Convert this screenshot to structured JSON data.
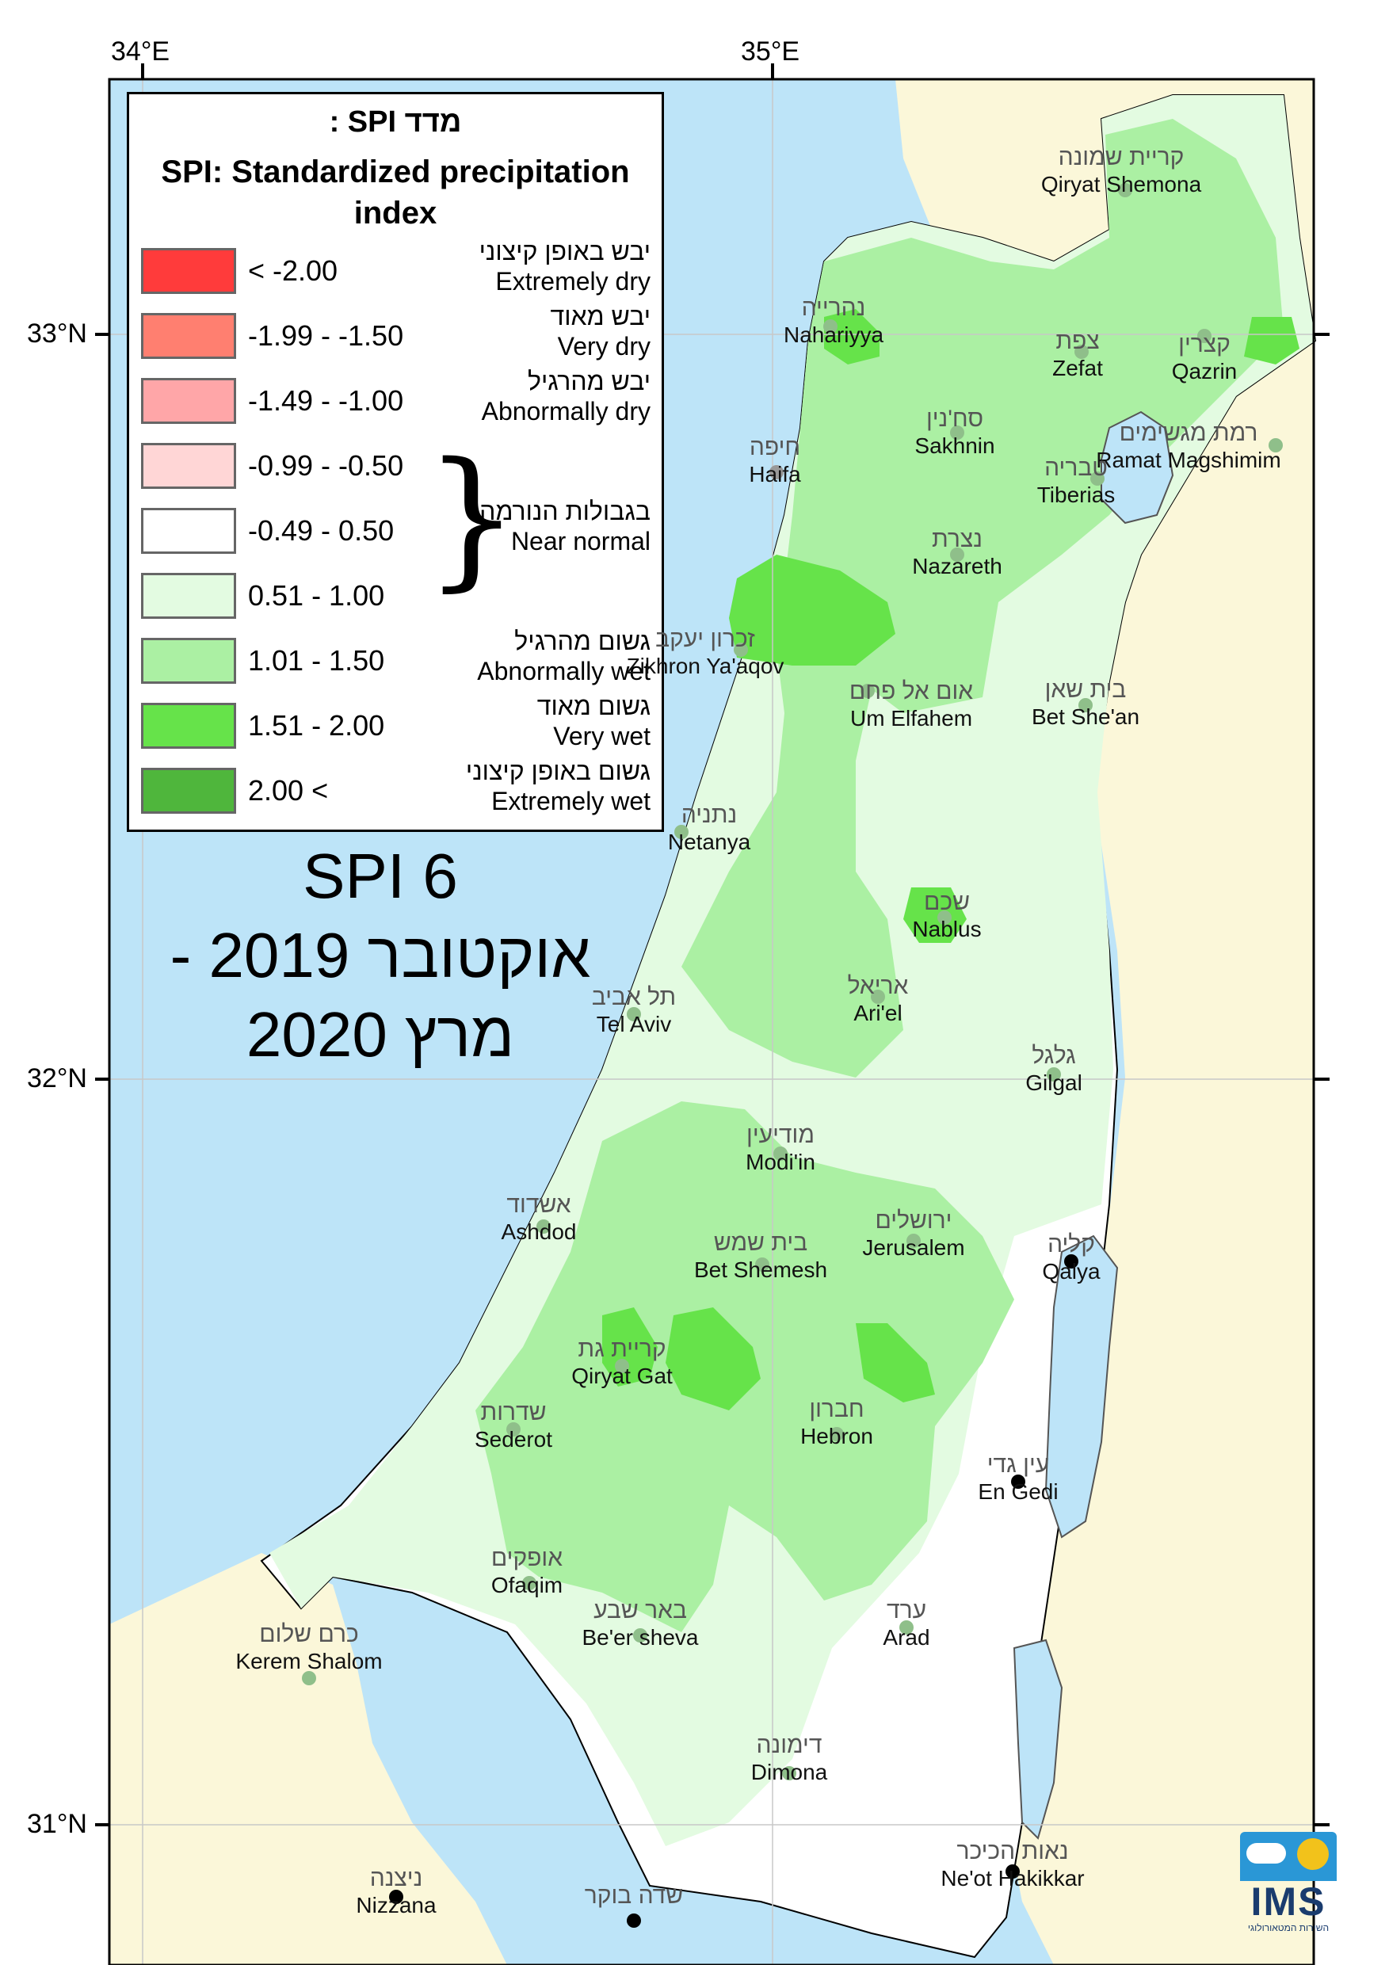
{
  "colors": {
    "sea": "#bde4f8",
    "land": "#fbf7d9",
    "near_normal": "#ffffff",
    "w051_100": "#e3fbe1",
    "w101_150": "#abf0a3",
    "w151_200": "#66e34a",
    "w200": "#4fb63c",
    "d_extreme": "#ff3b3b",
    "d_very": "#ff7f70",
    "d_abn": "#ffa6a8",
    "d_light": "#ffd6d6"
  },
  "axes": {
    "lon_ticks": [
      "34°E",
      "35°E"
    ],
    "lat_ticks": [
      "33°N",
      "32°N",
      "31°N"
    ]
  },
  "legend": {
    "heading_he": "מדד SPI :",
    "heading_en": "SPI: Standardized precipitation index",
    "classes": [
      {
        "range": "< -2.00",
        "color": "#ff3b3b",
        "label_he": "יבש באופן קיצוני",
        "label_en": "Extremely dry"
      },
      {
        "range": "-1.99 - -1.50",
        "color": "#ff7f70",
        "label_he": "יבש מאוד",
        "label_en": "Very dry"
      },
      {
        "range": "-1.49 - -1.00",
        "color": "#ffa6a8",
        "label_he": "יבש מהרגיל",
        "label_en": "Abnormally dry"
      },
      {
        "range": "-0.99 - -0.50",
        "color": "#ffd6d6",
        "label_he": "",
        "label_en": ""
      },
      {
        "range": "-0.49 - 0.50",
        "color": "#ffffff",
        "label_he": "בגבולות הנורמה",
        "label_en": "Near normal"
      },
      {
        "range": "0.51 - 1.00",
        "color": "#e3fbe1",
        "label_he": "",
        "label_en": ""
      },
      {
        "range": "1.01 - 1.50",
        "color": "#abf0a3",
        "label_he": "גשום מהרגיל",
        "label_en": "Abnormally wet"
      },
      {
        "range": "1.51 - 2.00",
        "color": "#66e34a",
        "label_he": "גשום מאוד",
        "label_en": "Very wet"
      },
      {
        "range": "2.00 <",
        "color": "#4fb63c",
        "label_he": "גשום באופן קיצוני",
        "label_en": "Extremely wet"
      }
    ]
  },
  "title": {
    "line1": "SPI 6",
    "line2": "אוקטובר 2019 -",
    "line3": "מרץ  2020"
  },
  "cities": [
    {
      "he": "קריית שמונה",
      "en": "Qiryat Shemona"
    },
    {
      "he": "נהרייה",
      "en": "Nahariyya"
    },
    {
      "he": "צפת",
      "en": "Zefat"
    },
    {
      "he": "קצרין",
      "en": "Qazrin"
    },
    {
      "he": "סח'נין",
      "en": "Sakhnin"
    },
    {
      "he": "רמת מגשימים",
      "en": "Ramat Magshimim"
    },
    {
      "he": "חיפה",
      "en": "Haifa"
    },
    {
      "he": "טבריה",
      "en": "Tiberias"
    },
    {
      "he": "נצרת",
      "en": "Nazareth"
    },
    {
      "he": "זכרון יעקב",
      "en": "Zikhron Ya'aqov"
    },
    {
      "he": "אום אל פחם",
      "en": "Um Elfahem"
    },
    {
      "he": "בית שאן",
      "en": "Bet She'an"
    },
    {
      "he": "נתניה",
      "en": "Netanya"
    },
    {
      "he": "שכם",
      "en": "Nablus"
    },
    {
      "he": "אריאל",
      "en": "Ari'el"
    },
    {
      "he": "תל אביב",
      "en": "Tel Aviv"
    },
    {
      "he": "גלגל",
      "en": "Gilgal"
    },
    {
      "he": "מודיעין",
      "en": "Modi'in"
    },
    {
      "he": "אשדוד",
      "en": "Ashdod"
    },
    {
      "he": "בית שמש",
      "en": "Bet Shemesh"
    },
    {
      "he": "ירושלים",
      "en": "Jerusalem"
    },
    {
      "he": "קליה",
      "en": "Qalya"
    },
    {
      "he": "קריית גת",
      "en": "Qiryat Gat"
    },
    {
      "he": "שדרות",
      "en": "Sederot"
    },
    {
      "he": "חברון",
      "en": "Hebron"
    },
    {
      "he": "עין גדי",
      "en": "En Gedi"
    },
    {
      "he": "אופקים",
      "en": "Ofaqim"
    },
    {
      "he": "באר שבע",
      "en": "Be'er sheva"
    },
    {
      "he": "ערד",
      "en": "Arad"
    },
    {
      "he": "כרם שלום",
      "en": "Kerem Shalom"
    },
    {
      "he": "דימונה",
      "en": "Dimona"
    },
    {
      "he": "נאות הכיכר",
      "en": "Ne'ot Hakikkar"
    },
    {
      "he": "ניצנה",
      "en": "Nizzana"
    },
    {
      "he": "שדה בוקר",
      "en": ""
    }
  ],
  "logo": {
    "text": "IMS",
    "sub": "השירות המטאורולוגי"
  }
}
